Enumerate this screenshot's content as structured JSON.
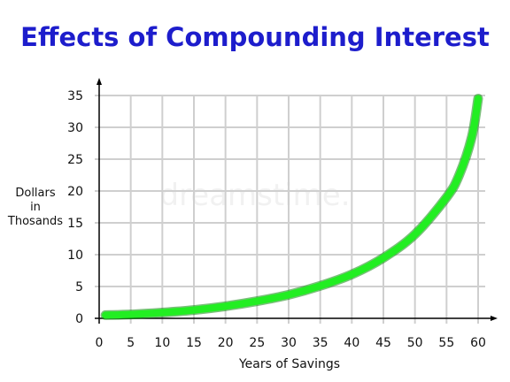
{
  "chart_data": {
    "type": "line",
    "title": "Effects of Compounding Interest",
    "xlabel": "Years of Savings",
    "ylabel": [
      "Dollars",
      "in",
      "Thosands"
    ],
    "xlim": [
      0,
      60
    ],
    "ylim": [
      0,
      35
    ],
    "x_ticks": [
      0,
      5,
      10,
      15,
      20,
      25,
      30,
      35,
      40,
      45,
      50,
      55,
      60
    ],
    "y_ticks": [
      0,
      5,
      10,
      15,
      20,
      25,
      30,
      35
    ],
    "grid": true,
    "series": [
      {
        "color": "#22ee22",
        "x": [
          1,
          5,
          10,
          15,
          20,
          25,
          30,
          35,
          40,
          45,
          50,
          55,
          57,
          59,
          60
        ],
        "y": [
          0.5,
          0.6,
          0.9,
          1.3,
          1.9,
          2.7,
          3.7,
          5.1,
          6.9,
          9.5,
          13.2,
          19.0,
          22.5,
          28.5,
          34.5
        ]
      }
    ],
    "watermark": "dreamstime."
  }
}
